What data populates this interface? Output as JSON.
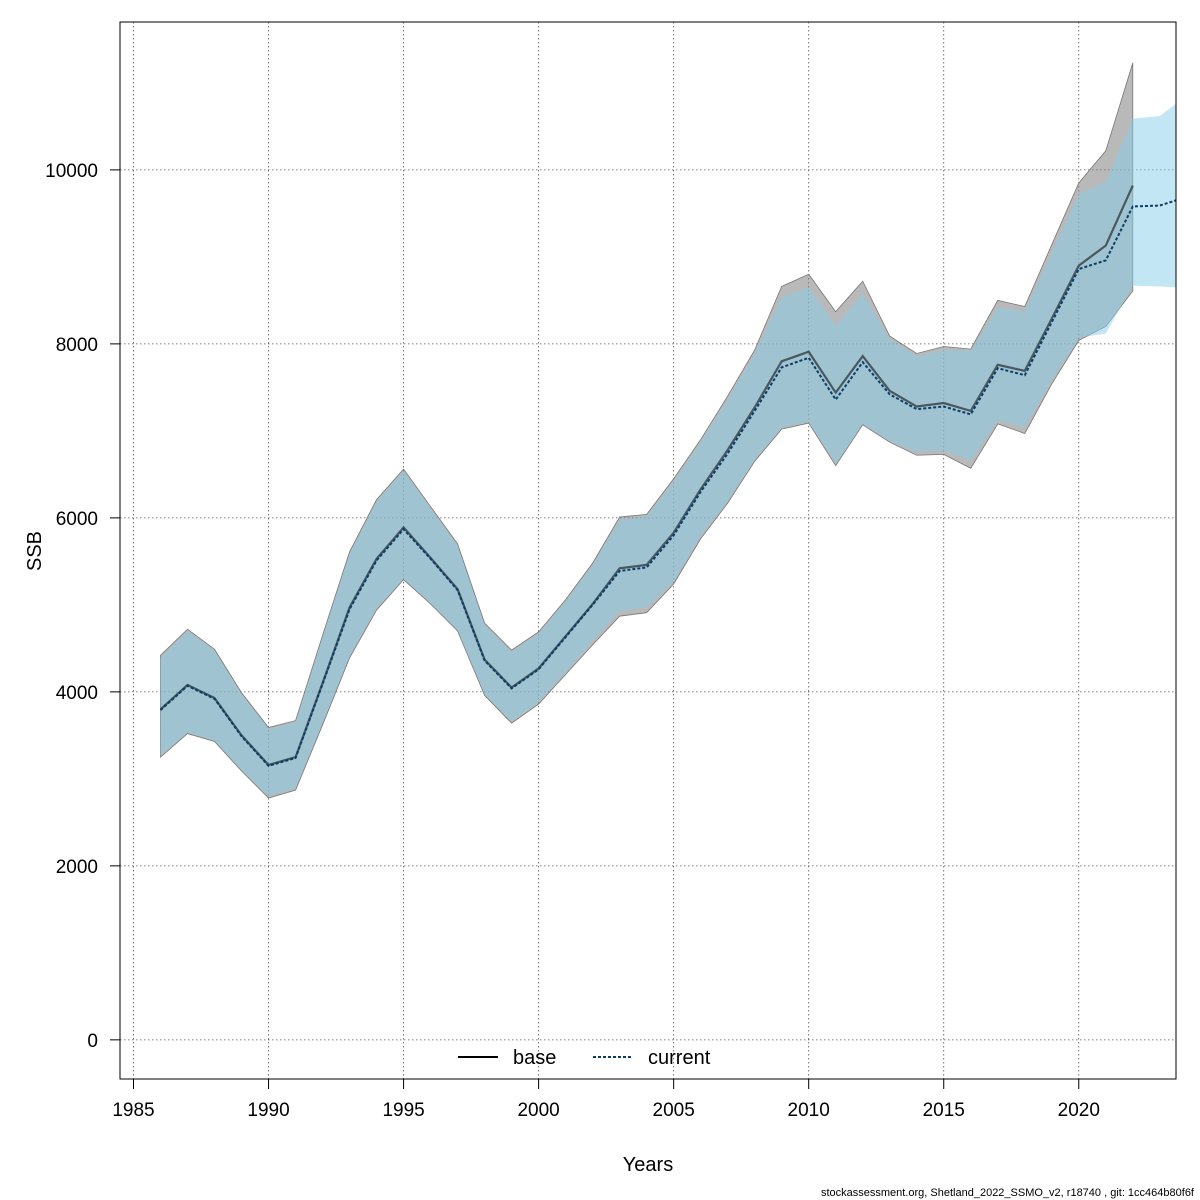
{
  "chart_data": {
    "type": "line",
    "title": "",
    "xlabel": "Years",
    "ylabel": "SSB",
    "xlim": [
      1984.5,
      2023.6
    ],
    "ylim": [
      -450,
      11700
    ],
    "x_ticks": [
      1985,
      1990,
      1995,
      2000,
      2005,
      2010,
      2015,
      2020
    ],
    "y_ticks": [
      0,
      2000,
      4000,
      6000,
      8000,
      10000
    ],
    "grid": true,
    "legend_position": "bottom-center",
    "series": [
      {
        "name": "base",
        "line_style": "solid",
        "line_color": "#000000",
        "band_color": "#808080",
        "x": [
          1986,
          1987,
          1988,
          1989,
          1990,
          1991,
          1992,
          1993,
          1994,
          1995,
          1996,
          1997,
          1998,
          1999,
          2000,
          2001,
          2002,
          2003,
          2004,
          2005,
          2006,
          2007,
          2008,
          2009,
          2010,
          2011,
          2012,
          2013,
          2014,
          2015,
          2016,
          2017,
          2018,
          2019,
          2020,
          2021,
          2022
        ],
        "y": [
          3800,
          4080,
          3930,
          3500,
          3160,
          3250,
          4100,
          4970,
          5530,
          5890,
          5540,
          5180,
          4370,
          4050,
          4270,
          4640,
          5010,
          5420,
          5460,
          5830,
          6330,
          6780,
          7270,
          7800,
          7910,
          7440,
          7860,
          7460,
          7280,
          7320,
          7230,
          7760,
          7690,
          8290,
          8900,
          9130,
          9820
        ],
        "lower": [
          3250,
          3520,
          3430,
          3090,
          2780,
          2870,
          3620,
          4390,
          4940,
          5290,
          5010,
          4700,
          3960,
          3640,
          3860,
          4200,
          4540,
          4870,
          4910,
          5240,
          5760,
          6170,
          6650,
          7020,
          7090,
          6600,
          7070,
          6870,
          6720,
          6730,
          6570,
          7080,
          6970,
          7540,
          8040,
          8200,
          8610
        ],
        "upper": [
          4420,
          4720,
          4490,
          3990,
          3590,
          3670,
          4650,
          5610,
          6210,
          6560,
          6130,
          5700,
          4790,
          4480,
          4690,
          5060,
          5480,
          6010,
          6040,
          6450,
          6900,
          7400,
          7930,
          8660,
          8800,
          8370,
          8720,
          8090,
          7890,
          7970,
          7940,
          8500,
          8430,
          9140,
          9850,
          10220,
          11230
        ]
      },
      {
        "name": "current",
        "line_style": "dashed",
        "line_color": "#0B3D66",
        "band_color": "#87CEEB",
        "x": [
          1986,
          1987,
          1988,
          1989,
          1990,
          1991,
          1992,
          1993,
          1994,
          1995,
          1996,
          1997,
          1998,
          1999,
          2000,
          2001,
          2002,
          2003,
          2004,
          2005,
          2006,
          2007,
          2008,
          2009,
          2010,
          2011,
          2012,
          2013,
          2014,
          2015,
          2016,
          2017,
          2018,
          2019,
          2020,
          2021,
          2022,
          2023,
          2023.6
        ],
        "y": [
          3790,
          4070,
          3920,
          3490,
          3150,
          3240,
          4090,
          4950,
          5510,
          5870,
          5530,
          5170,
          4360,
          4040,
          4260,
          4630,
          5000,
          5390,
          5430,
          5800,
          6300,
          6740,
          7230,
          7730,
          7840,
          7360,
          7790,
          7420,
          7250,
          7280,
          7190,
          7720,
          7640,
          8250,
          8860,
          8960,
          9580,
          9590,
          9650
        ],
        "lower": [
          3270,
          3530,
          3440,
          3100,
          2800,
          2890,
          3640,
          4410,
          4960,
          5300,
          5020,
          4710,
          3970,
          3660,
          3880,
          4230,
          4580,
          4930,
          4970,
          5270,
          5790,
          6190,
          6670,
          7040,
          7100,
          6620,
          7080,
          6880,
          6760,
          6770,
          6660,
          7120,
          7040,
          7580,
          8070,
          8120,
          8670,
          8660,
          8650
        ],
        "upper": [
          4390,
          4700,
          4470,
          3970,
          3570,
          3650,
          4630,
          5590,
          6190,
          6540,
          6110,
          5680,
          4770,
          4460,
          4670,
          5040,
          5460,
          5980,
          6010,
          6420,
          6870,
          7360,
          7890,
          8540,
          8650,
          8210,
          8580,
          8050,
          7860,
          7930,
          7920,
          8420,
          8380,
          9050,
          9720,
          9870,
          10590,
          10620,
          10760
        ]
      }
    ],
    "footer": "stockassessment.org, Shetland_2022_SSMO_v2, r18740 , git: 1cc464b80f6f"
  }
}
